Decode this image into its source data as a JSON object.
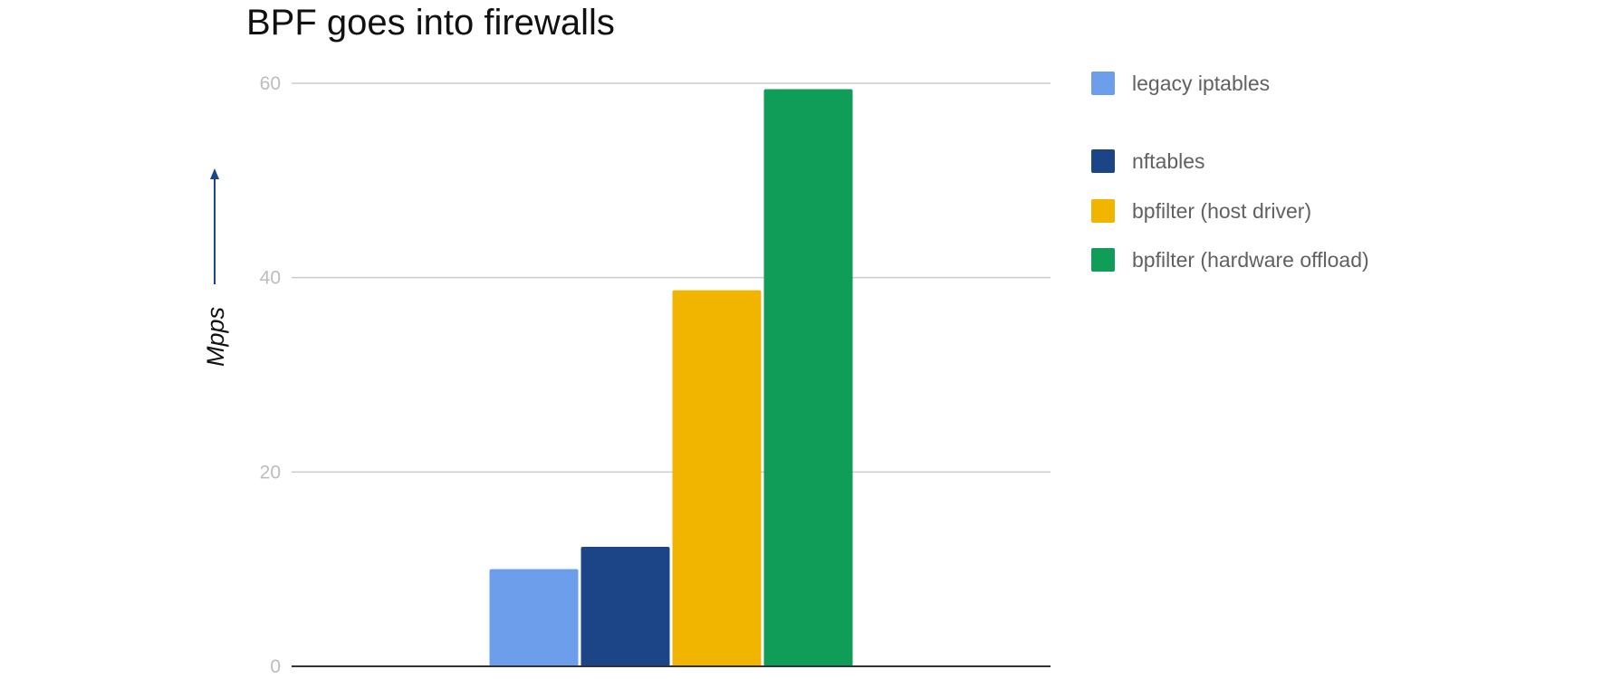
{
  "chart_data": {
    "type": "bar",
    "title": "BPF goes into firewalls",
    "xlabel": "",
    "ylabel": "Mpps",
    "ylim": [
      0,
      60
    ],
    "yticks": [
      0,
      20,
      40,
      60
    ],
    "grid": true,
    "legend_position": "right",
    "series": [
      {
        "name": "legacy iptables",
        "color": "#6d9eeb",
        "values": [
          10
        ]
      },
      {
        "name": "nftables",
        "color": "#1c4587",
        "values": [
          12.3
        ]
      },
      {
        "name": "bpfilter (host driver)",
        "color": "#f1b500",
        "values": [
          38.7
        ]
      },
      {
        "name": "bpfilter (hardware offload)",
        "color": "#0f9d58",
        "values": [
          59.4
        ]
      }
    ]
  }
}
